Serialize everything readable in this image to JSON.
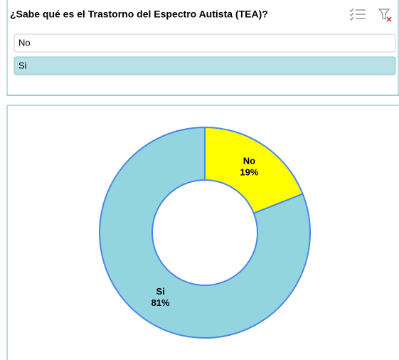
{
  "slicer": {
    "title": "¿Sabe qué es el Trastorno del Espectro Autista (TEA)?",
    "items": [
      "No",
      "Si"
    ],
    "selected": [
      false,
      true
    ]
  },
  "chart_data": {
    "type": "donut",
    "categories": [
      "No",
      "Si"
    ],
    "values": [
      19,
      81
    ],
    "value_labels": [
      "19%",
      "81%"
    ],
    "colors": [
      "#ffff00",
      "#93d5de"
    ]
  }
}
